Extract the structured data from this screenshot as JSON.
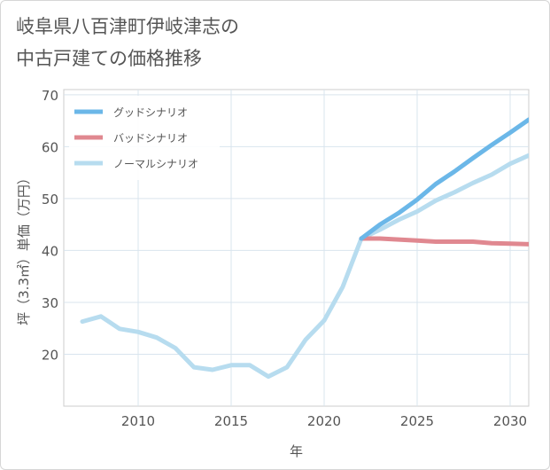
{
  "title_line1": "岐阜県八百津町伊岐津志の",
  "title_line2": "中古戸建ての価格推移",
  "chart_data": {
    "type": "line",
    "xlabel": "年",
    "ylabel": "坪（3.3㎡）単価（万円）",
    "xlim": [
      2006,
      2031
    ],
    "ylim": [
      10,
      71
    ],
    "x_ticks": [
      2010,
      2015,
      2020,
      2025,
      2030
    ],
    "y_ticks": [
      20,
      30,
      40,
      50,
      60,
      70
    ],
    "grid": true,
    "legend_position": "top-left",
    "series": [
      {
        "name": "グッドシナリオ",
        "color": "#6bb7e8",
        "width": 5,
        "x": [
          2022,
          2023,
          2024,
          2025,
          2026,
          2027,
          2028,
          2029,
          2030,
          2031
        ],
        "y": [
          42.3,
          45.0,
          47.2,
          49.8,
          52.8,
          55.2,
          57.8,
          60.3,
          62.7,
          65.2
        ]
      },
      {
        "name": "バッドシナリオ",
        "color": "#e08890",
        "width": 5,
        "x": [
          2022,
          2023,
          2024,
          2025,
          2026,
          2027,
          2028,
          2029,
          2030,
          2031
        ],
        "y": [
          42.3,
          42.3,
          42.1,
          41.9,
          41.7,
          41.7,
          41.7,
          41.4,
          41.3,
          41.2
        ]
      },
      {
        "name": "ノーマルシナリオ",
        "color": "#b7dcef",
        "width": 5,
        "x": [
          2007,
          2008,
          2009,
          2010,
          2011,
          2012,
          2013,
          2014,
          2015,
          2016,
          2017,
          2018,
          2019,
          2020,
          2021,
          2022,
          2023,
          2024,
          2025,
          2026,
          2027,
          2028,
          2029,
          2030,
          2031
        ],
        "y": [
          26.3,
          27.3,
          24.9,
          24.3,
          23.2,
          21.2,
          17.5,
          17.0,
          17.9,
          17.9,
          15.7,
          17.5,
          22.8,
          26.5,
          33.0,
          42.3,
          44.0,
          45.9,
          47.5,
          49.6,
          51.2,
          53.0,
          54.6,
          56.7,
          58.3
        ]
      }
    ]
  }
}
